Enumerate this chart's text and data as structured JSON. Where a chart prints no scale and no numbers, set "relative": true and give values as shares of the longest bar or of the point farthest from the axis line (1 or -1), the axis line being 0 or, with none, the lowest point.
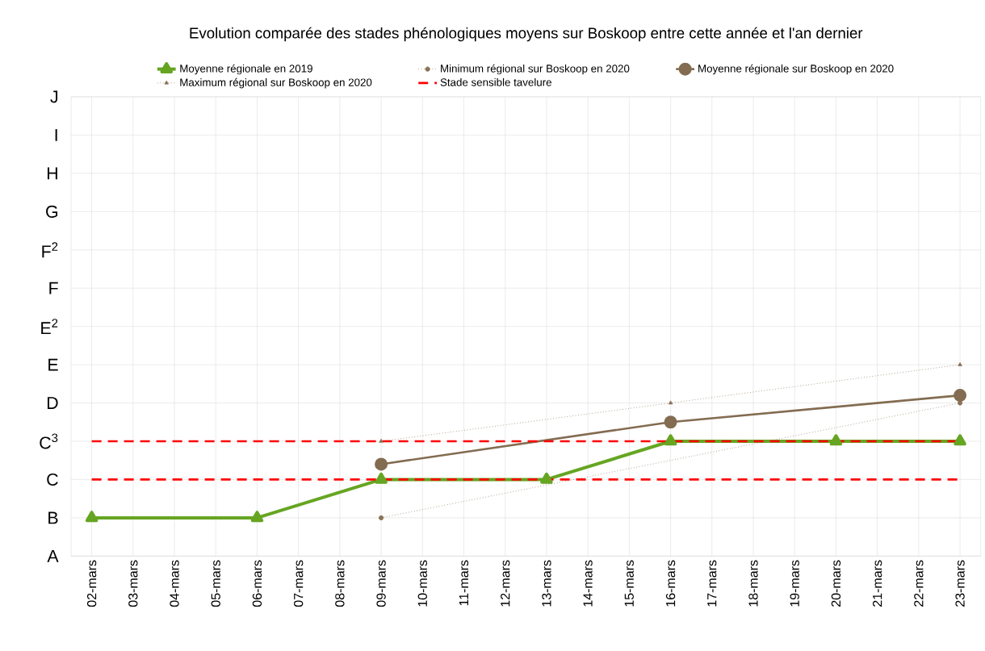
{
  "chart_data": {
    "type": "line",
    "title": "Evolution comparée des stades phénologiques moyens sur Boskoop entre cette année et l'an dernier",
    "categories": [
      "02-mars",
      "03-mars",
      "04-mars",
      "05-mars",
      "06-mars",
      "07-mars",
      "08-mars",
      "09-mars",
      "10-mars",
      "11-mars",
      "12-mars",
      "13-mars",
      "14-mars",
      "15-mars",
      "16-mars",
      "17-mars",
      "18-mars",
      "19-mars",
      "20-mars",
      "21-mars",
      "22-mars",
      "23-mars"
    ],
    "relative": true,
    "series": [
      {
        "name": "Moyenne régionale en 2019",
        "color": "#66a522",
        "marker": "triangle",
        "line_style": "solid",
        "values": [
          0.2,
          null,
          null,
          null,
          0.2,
          null,
          null,
          0.4,
          null,
          null,
          null,
          0.4,
          null,
          null,
          0.6,
          null,
          null,
          null,
          0.6,
          null,
          null,
          0.6
        ]
      },
      {
        "name": "Minimum régional sur Boskoop en 2020",
        "color": "#8a7154",
        "marker": "circle",
        "line_style": "dotted",
        "values": [
          null,
          null,
          null,
          null,
          null,
          null,
          null,
          0.2,
          null,
          null,
          null,
          null,
          null,
          null,
          null,
          null,
          null,
          null,
          null,
          null,
          null,
          0.8
        ]
      },
      {
        "name": "Moyenne régionale sur Boskoop en 2020",
        "color": "#836c51",
        "marker": "circle",
        "line_style": "solid",
        "values": [
          null,
          null,
          null,
          null,
          null,
          null,
          null,
          0.48,
          null,
          null,
          null,
          null,
          null,
          null,
          0.7,
          null,
          null,
          null,
          null,
          null,
          null,
          0.84
        ]
      },
      {
        "name": "Maximum régional sur Boskoop en 2020",
        "color": "#8a7154",
        "marker": "triangle",
        "line_style": "dotted",
        "values": [
          null,
          null,
          null,
          null,
          null,
          null,
          null,
          0.6,
          null,
          null,
          null,
          null,
          null,
          null,
          0.8,
          null,
          null,
          null,
          null,
          null,
          null,
          1
        ]
      }
    ],
    "ref_lines": [
      {
        "axis": "y",
        "value": 0.6,
        "label": "Stade sensible tavelure",
        "color": "#ff0000",
        "line_style": "dashed"
      },
      {
        "axis": "y",
        "value": 0.4,
        "color": "#ff0000",
        "line_style": "dashed"
      }
    ],
    "y_categories": [
      "J",
      "I",
      "H",
      "G",
      "F$^{2}$",
      "F",
      "E$^{2}$",
      "E",
      "D",
      "C$^{3}$",
      "C",
      "B",
      "A"
    ],
    "grid": true,
    "legend": "top"
  }
}
